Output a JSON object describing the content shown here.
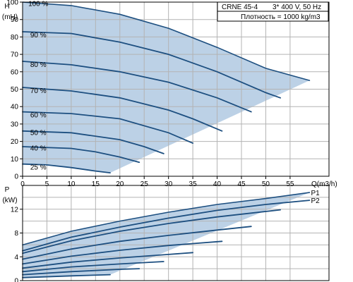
{
  "info_box": {
    "model": "CRNE 45-4",
    "supply": "3* 400 V, 50 Hz",
    "density": "Плотность = 1000 kg/m3"
  },
  "colors": {
    "envelope_fill": "#bcd1e6",
    "curve": "#1d4f80",
    "grid": "#b3b3b3",
    "axis": "#000000",
    "background": "#ffffff"
  },
  "chart_data": [
    {
      "type": "line",
      "ylabel": "H",
      "yunit": "(mH)",
      "xlim": [
        0,
        63
      ],
      "ylim": [
        0,
        100
      ],
      "x_ticks": [
        0,
        5,
        10,
        15,
        20,
        25,
        30,
        35,
        40,
        45,
        50,
        55
      ],
      "x_tick_labels": [
        "0",
        "5",
        "10",
        "15",
        "20",
        "25",
        "30",
        "35",
        "40",
        "45",
        "50",
        "55"
      ],
      "xlabel": "Q(m3/h)",
      "y_ticks": [
        0,
        10,
        20,
        30,
        40,
        50,
        60,
        70,
        80,
        90,
        100
      ],
      "y_tick_labels": [
        "0",
        "10",
        "20",
        "30",
        "40",
        "50",
        "60",
        "70",
        "80",
        "90",
        "100"
      ],
      "grid": true,
      "series": [
        {
          "name": "100 %",
          "label_at": [
            0.3,
            99
          ],
          "points": [
            [
              0,
              100
            ],
            [
              10,
              98
            ],
            [
              20,
              93
            ],
            [
              30,
              85
            ],
            [
              40,
              74
            ],
            [
              50,
              62
            ],
            [
              59,
              55
            ]
          ]
        },
        {
          "name": "90 %",
          "label_at": [
            0.7,
            81
          ],
          "points": [
            [
              0,
              83
            ],
            [
              10,
              82
            ],
            [
              20,
              77
            ],
            [
              30,
              70
            ],
            [
              40,
              60
            ],
            [
              50,
              48
            ],
            [
              53,
              45
            ]
          ]
        },
        {
          "name": "80 %",
          "label_at": [
            0.7,
            64
          ],
          "points": [
            [
              0,
              66
            ],
            [
              10,
              64
            ],
            [
              20,
              60
            ],
            [
              30,
              54
            ],
            [
              40,
              45
            ],
            [
              47,
              37
            ]
          ]
        },
        {
          "name": "70 %",
          "label_at": [
            0.7,
            49
          ],
          "points": [
            [
              0,
              51
            ],
            [
              10,
              49
            ],
            [
              20,
              45
            ],
            [
              30,
              38
            ],
            [
              35,
              33
            ],
            [
              41,
              26
            ]
          ]
        },
        {
          "name": "60 %",
          "label_at": [
            0.7,
            35
          ],
          "points": [
            [
              0,
              37
            ],
            [
              10,
              36
            ],
            [
              20,
              33
            ],
            [
              30,
              25
            ],
            [
              35,
              19
            ]
          ]
        },
        {
          "name": "50 %",
          "label_at": [
            0.7,
            25
          ],
          "points": [
            [
              0,
              26
            ],
            [
              10,
              25
            ],
            [
              20,
              21
            ],
            [
              25,
              17
            ],
            [
              29,
              13
            ]
          ]
        },
        {
          "name": "40 %",
          "label_at": [
            0.7,
            16
          ],
          "points": [
            [
              0,
              17
            ],
            [
              10,
              16
            ],
            [
              15,
              14
            ],
            [
              20,
              11
            ],
            [
              24,
              8
            ]
          ]
        },
        {
          "name": "25 %",
          "label_at": [
            0.7,
            5
          ],
          "points": [
            [
              0,
              7
            ],
            [
              5,
              6.5
            ],
            [
              10,
              5
            ],
            [
              15,
              3
            ],
            [
              18,
              2
            ]
          ]
        }
      ]
    },
    {
      "type": "line",
      "ylabel": "P",
      "yunit": "(kW)",
      "xlim": [
        0,
        63
      ],
      "ylim": [
        0,
        16
      ],
      "y_ticks": [
        0,
        4,
        8,
        12
      ],
      "y_tick_labels": [
        "0",
        "4",
        "8",
        "12"
      ],
      "grid": true,
      "series": [
        {
          "name": "P1",
          "points": [
            [
              0,
              6
            ],
            [
              10,
              8.3
            ],
            [
              20,
              10
            ],
            [
              30,
              11.5
            ],
            [
              40,
              12.8
            ],
            [
              50,
              13.8
            ],
            [
              59,
              14.8
            ]
          ]
        },
        {
          "name": "P2",
          "points": [
            [
              0,
              5
            ],
            [
              10,
              7.3
            ],
            [
              20,
              9
            ],
            [
              30,
              10.5
            ],
            [
              40,
              11.8
            ],
            [
              50,
              12.8
            ],
            [
              59,
              13.5
            ]
          ]
        },
        {
          "name": "",
          "points": [
            [
              0,
              4.6
            ],
            [
              10,
              6.7
            ],
            [
              20,
              8.3
            ],
            [
              30,
              9.6
            ],
            [
              40,
              10.7
            ],
            [
              53,
              11.9
            ]
          ]
        },
        {
          "name": "",
          "points": [
            [
              0,
              3.6
            ],
            [
              10,
              5.3
            ],
            [
              20,
              6.6
            ],
            [
              30,
              7.6
            ],
            [
              40,
              8.5
            ],
            [
              47,
              9.1
            ]
          ]
        },
        {
          "name": "",
          "points": [
            [
              0,
              2.8
            ],
            [
              10,
              4.1
            ],
            [
              20,
              5.1
            ],
            [
              30,
              5.9
            ],
            [
              41,
              6.6
            ]
          ]
        },
        {
          "name": "",
          "points": [
            [
              0,
              2.1
            ],
            [
              10,
              3.1
            ],
            [
              20,
              3.8
            ],
            [
              30,
              4.4
            ],
            [
              35,
              4.7
            ]
          ]
        },
        {
          "name": "",
          "points": [
            [
              0,
              1.5
            ],
            [
              10,
              2.3
            ],
            [
              20,
              2.8
            ],
            [
              29,
              3.2
            ]
          ]
        },
        {
          "name": "",
          "points": [
            [
              0,
              1.0
            ],
            [
              10,
              1.5
            ],
            [
              20,
              1.9
            ],
            [
              24,
              2.0
            ]
          ]
        },
        {
          "name": "",
          "points": [
            [
              0,
              0.5
            ],
            [
              10,
              0.8
            ],
            [
              18,
              1.0
            ]
          ]
        }
      ]
    }
  ]
}
